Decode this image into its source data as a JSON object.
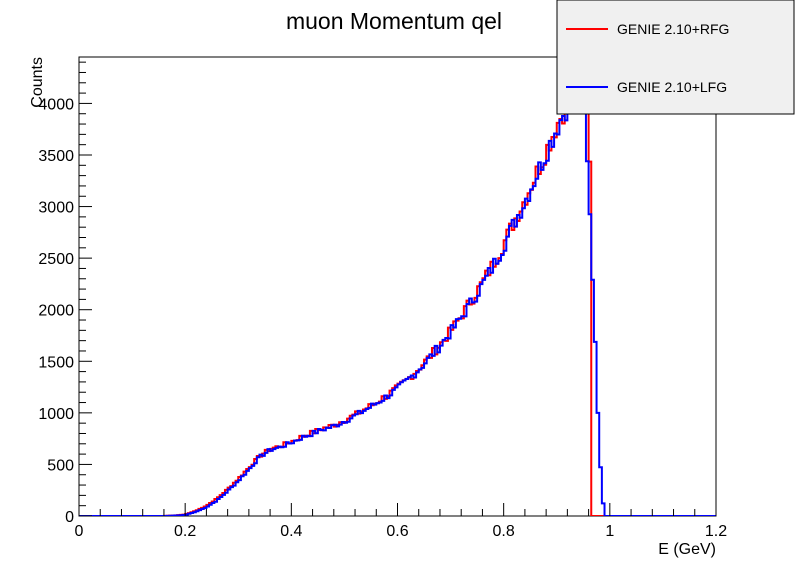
{
  "chart_data": {
    "type": "line",
    "title": "muon Momentum qel",
    "xlabel": "E (GeV)",
    "ylabel": "Counts",
    "xlim": [
      0,
      1.2
    ],
    "ylim": [
      0,
      4450
    ],
    "x_ticks": [
      "0",
      "0.2",
      "0.4",
      "0.6",
      "0.8",
      "1",
      "1.2"
    ],
    "y_ticks": [
      "0",
      "500",
      "1000",
      "1500",
      "2000",
      "2500",
      "3000",
      "3500",
      "4000"
    ],
    "grid": false,
    "legend_position": "top-right",
    "bin_width": 0.005,
    "series": [
      {
        "name": "GENIE 2.10+RFG",
        "color": "#ff0000",
        "x": [
          0.16,
          0.18,
          0.2,
          0.22,
          0.24,
          0.26,
          0.28,
          0.3,
          0.32,
          0.34,
          0.36,
          0.38,
          0.4,
          0.42,
          0.44,
          0.46,
          0.48,
          0.5,
          0.52,
          0.54,
          0.56,
          0.58,
          0.6,
          0.62,
          0.64,
          0.66,
          0.68,
          0.7,
          0.72,
          0.74,
          0.76,
          0.78,
          0.8,
          0.82,
          0.84,
          0.86,
          0.88,
          0.9,
          0.92,
          0.94,
          0.955,
          0.96,
          0.965,
          0.966,
          0.97
        ],
        "y": [
          0,
          5,
          15,
          50,
          100,
          170,
          260,
          360,
          470,
          580,
          650,
          680,
          720,
          770,
          810,
          850,
          880,
          930,
          980,
          1040,
          1100,
          1170,
          1240,
          1330,
          1430,
          1540,
          1660,
          1790,
          1940,
          2100,
          2260,
          2440,
          2640,
          2860,
          3070,
          3300,
          3540,
          3790,
          4000,
          4200,
          4400,
          3900,
          3150,
          0,
          0
        ]
      },
      {
        "name": "GENIE 2.10+LFG",
        "color": "#0000ff",
        "x": [
          0.16,
          0.18,
          0.2,
          0.22,
          0.24,
          0.26,
          0.28,
          0.3,
          0.32,
          0.34,
          0.36,
          0.38,
          0.4,
          0.42,
          0.44,
          0.46,
          0.48,
          0.5,
          0.52,
          0.54,
          0.56,
          0.58,
          0.6,
          0.62,
          0.64,
          0.66,
          0.68,
          0.7,
          0.72,
          0.74,
          0.76,
          0.78,
          0.8,
          0.82,
          0.84,
          0.86,
          0.88,
          0.9,
          0.92,
          0.94,
          0.95,
          0.96,
          0.965,
          0.97,
          0.975,
          0.98,
          0.985,
          0.99
        ],
        "y": [
          0,
          4,
          10,
          40,
          85,
          150,
          240,
          340,
          450,
          570,
          640,
          670,
          710,
          760,
          800,
          840,
          870,
          920,
          970,
          1030,
          1090,
          1160,
          1230,
          1320,
          1420,
          1530,
          1650,
          1780,
          1920,
          2080,
          2240,
          2420,
          2620,
          2840,
          3050,
          3280,
          3520,
          3760,
          3980,
          4150,
          4350,
          3200,
          2700,
          2000,
          1300,
          750,
          220,
          30
        ]
      }
    ]
  }
}
